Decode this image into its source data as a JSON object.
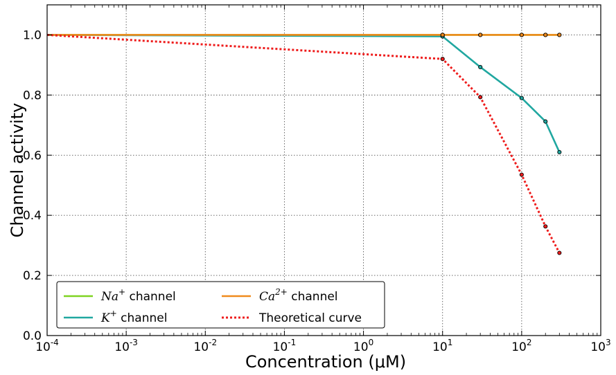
{
  "chart_data": {
    "type": "line",
    "x_scale": "log",
    "xlim": [
      0.0001,
      1000
    ],
    "ylim": [
      0.0,
      1.1
    ],
    "grid": true,
    "xlabel": "Concentration (μM)",
    "ylabel": "Channel activity",
    "x_ticks": [
      {
        "base": "10",
        "exp": "-4",
        "value": 0.0001
      },
      {
        "base": "10",
        "exp": "-3",
        "value": 0.001
      },
      {
        "base": "10",
        "exp": "-2",
        "value": 0.01
      },
      {
        "base": "10",
        "exp": "-1",
        "value": 0.1
      },
      {
        "base": "10",
        "exp": "0",
        "value": 1
      },
      {
        "base": "10",
        "exp": "1",
        "value": 10
      },
      {
        "base": "10",
        "exp": "2",
        "value": 100
      },
      {
        "base": "10",
        "exp": "3",
        "value": 1000
      }
    ],
    "y_ticks": [
      "0.0",
      "0.2",
      "0.4",
      "0.6",
      "0.8",
      "1.0"
    ],
    "legend_position": "lower-left",
    "series": [
      {
        "name_base": "Na",
        "name_sup": "+",
        "name_rest": " channel",
        "color": "#7ed321",
        "style": "solid",
        "x": [
          0.0001,
          10,
          30,
          100,
          200,
          300
        ],
        "y": [
          1.0,
          1.0,
          1.0,
          1.0,
          1.0,
          1.0
        ]
      },
      {
        "name_base": "K",
        "name_sup": "+",
        "name_rest": " channel",
        "color": "#20a7a0",
        "style": "solid",
        "x": [
          0.0001,
          10,
          30,
          100,
          200,
          300
        ],
        "y": [
          1.0,
          0.995,
          0.893,
          0.79,
          0.712,
          0.61
        ]
      },
      {
        "name_base": "Ca",
        "name_sup": "2+",
        "name_rest": " channel",
        "color": "#f08a1c",
        "style": "solid",
        "x": [
          0.0001,
          10,
          30,
          100,
          200,
          300
        ],
        "y": [
          1.0,
          1.0,
          1.0,
          1.0,
          1.0,
          1.0
        ]
      },
      {
        "name_base": "",
        "name_sup": "",
        "name_rest": "Theoretical curve",
        "color": "#ee1c1c",
        "style": "dotted",
        "x": [
          0.0001,
          10,
          30,
          100,
          200,
          300
        ],
        "y": [
          1.0,
          0.92,
          0.793,
          0.535,
          0.363,
          0.275
        ]
      }
    ]
  }
}
